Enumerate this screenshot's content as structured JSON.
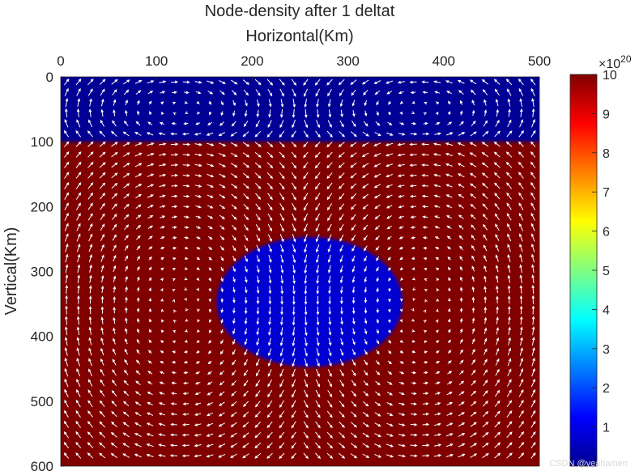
{
  "chart_data": {
    "type": "heatmap",
    "title": "Node-density after 1 deltat",
    "xlabel": "Horizontal(Km)",
    "ylabel": "Vertical(Km)",
    "xlim": [
      0,
      500
    ],
    "ylim": [
      0,
      600
    ],
    "x_axis_position": "top",
    "y_axis_direction": "reversed",
    "x_ticks": [
      "0",
      "100",
      "200",
      "300",
      "400",
      "500"
    ],
    "y_ticks": [
      "0",
      "100",
      "200",
      "300",
      "400",
      "500",
      "600"
    ],
    "colormap": "jet",
    "colorbar": {
      "range": [
        0,
        10
      ],
      "exponent_label": "×10",
      "exponent": "20",
      "ticks": [
        "1",
        "2",
        "3",
        "4",
        "5",
        "6",
        "7",
        "8",
        "9",
        "10"
      ]
    },
    "field": {
      "background_value": 10,
      "top_layer": {
        "y_from": 0,
        "y_to": 100,
        "value": 0.2
      },
      "ellipse": {
        "center_x": 260,
        "center_y": 347,
        "radius_x": 97,
        "radius_y": 100,
        "value": 0.8
      }
    },
    "vectors": {
      "color": "#ffffff",
      "layer_cells": {
        "x_range": [
          0,
          500
        ],
        "y_range": [
          0,
          100
        ],
        "centers_x": [
          125,
          375
        ]
      },
      "main_cells": {
        "x_range": [
          0,
          500
        ],
        "y_range": [
          100,
          600
        ],
        "centers_x": [
          125,
          375
        ]
      }
    }
  },
  "watermark": "CSDN @yeahamen"
}
